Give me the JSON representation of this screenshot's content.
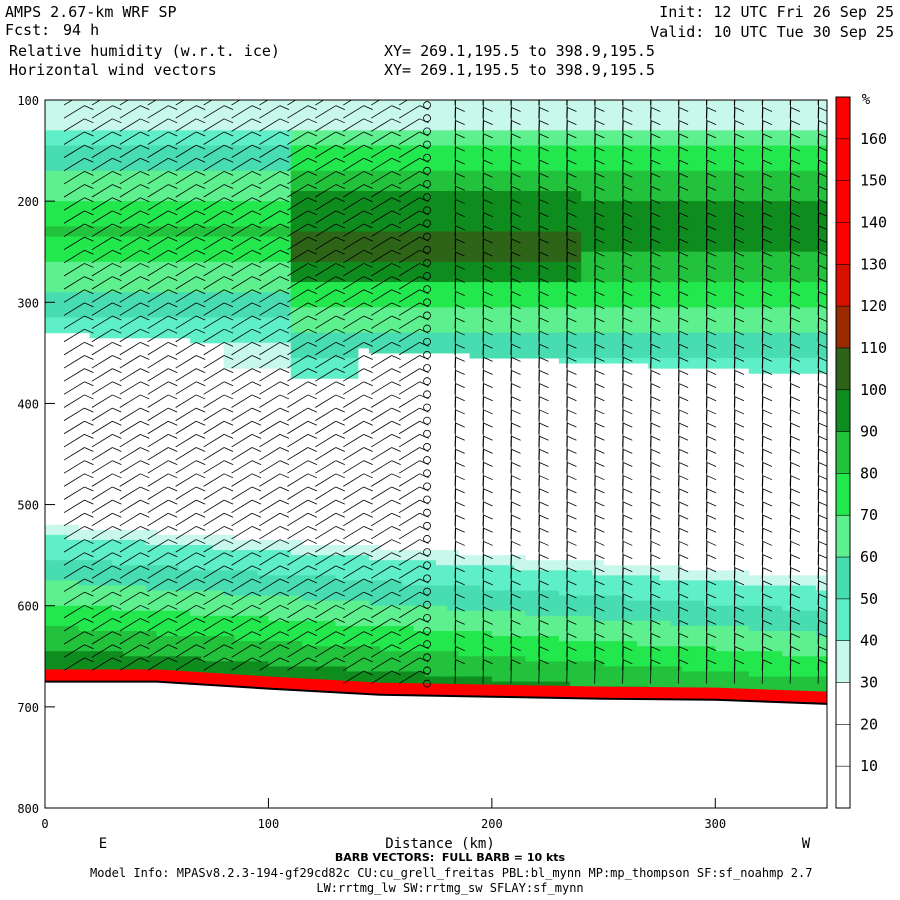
{
  "header": {
    "model": "AMPS 2.67-km WRF SP",
    "fcst_label": "Fcst:",
    "fcst_value": "94 h",
    "field1": "Relative humidity (w.r.t. ice)",
    "field2": "Horizontal wind vectors",
    "init": "Init: 12 UTC Fri 26 Sep 25",
    "valid": "Valid: 10 UTC Tue 30 Sep 25",
    "xy1": "XY= 269.1,195.5 to 398.9,195.5",
    "xy2": "XY= 269.1,195.5 to 398.9,195.5"
  },
  "footer": {
    "barb_note": "BARB VECTORS:  FULL BARB = 10 kts",
    "model_info": "Model Info: MPASv8.2.3-194-gf29cd82c CU:cu_grell_freitas PBL:bl_mynn MP:mp_thompson SF:sf_noahmp 2.7",
    "model_info2": "LW:rrtmg_lw SW:rrtmg_sw SFLAY:sf_mynn"
  },
  "chart_data": {
    "type": "heatmap",
    "title": "Relative humidity (w.r.t. ice)",
    "xlabel": "Distance (km)",
    "ylabel": "",
    "xlim": [
      0,
      350
    ],
    "ylim": [
      800,
      100
    ],
    "x_ticks": [
      "0",
      "100",
      "200",
      "300"
    ],
    "y_ticks": [
      "100",
      "200",
      "300",
      "400",
      "500",
      "600",
      "700",
      "800"
    ],
    "x_end_labels": {
      "left": "E",
      "right": "W"
    },
    "colorbar": {
      "unit": "%",
      "levels": [
        10,
        20,
        30,
        40,
        50,
        60,
        70,
        80,
        90,
        100,
        110,
        120,
        130,
        140,
        150,
        160
      ],
      "tick_labels": [
        "10",
        "20",
        "30",
        "40",
        "50",
        "60",
        "70",
        "80",
        "90",
        "100",
        "110",
        "120",
        "130",
        "140",
        "150",
        "160"
      ],
      "colors": [
        "#ffffff",
        "#ffffff",
        "#ffffff",
        "#c8f8ec",
        "#5eeec8",
        "#48ddb0",
        "#5ef08e",
        "#22e84e",
        "#22c23c",
        "#0f8c1e",
        "#2e6418",
        "#9a2a00",
        "#d81000",
        "#ff0000",
        "#ff0000",
        "#ff0000",
        "#ff0000"
      ]
    },
    "terrain_top_pressure": [
      {
        "x": 0,
        "p": 675
      },
      {
        "x": 50,
        "p": 675
      },
      {
        "x": 100,
        "p": 682
      },
      {
        "x": 150,
        "p": 688
      },
      {
        "x": 200,
        "p": 690
      },
      {
        "x": 250,
        "p": 692
      },
      {
        "x": 300,
        "p": 693
      },
      {
        "x": 350,
        "p": 697
      }
    ],
    "wind_barb_note": "FULL BARB = 10 kts"
  }
}
